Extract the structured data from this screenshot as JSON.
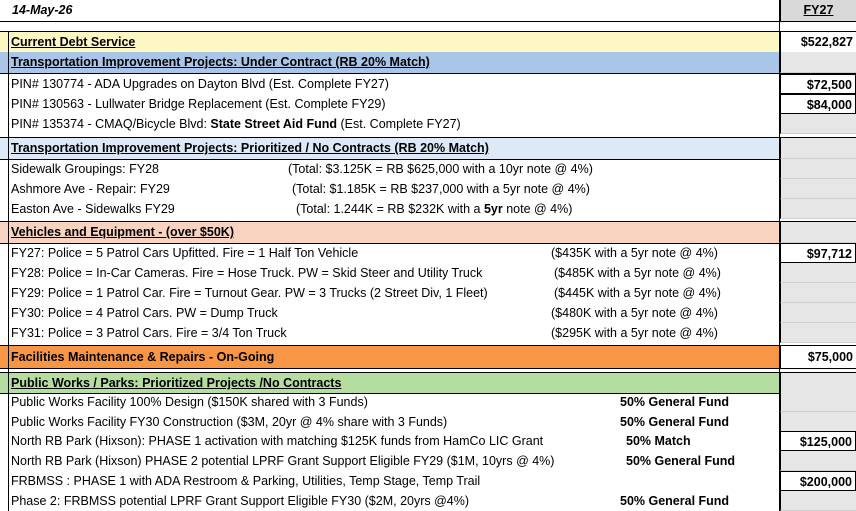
{
  "date": "14-May-26",
  "fy_header": "FY27",
  "current_debt": {
    "label": "Current Debt Service",
    "amount": "$522,827"
  },
  "transport_contract": {
    "header": "Transportation Improvement Projects: Under Contract (RB 20% Match)",
    "rows": [
      {
        "text": "PIN# 130774 - ADA Upgrades on Dayton Blvd (Est. Complete FY27)",
        "amount": "$72,500"
      },
      {
        "text": "PIN# 130563 - Lullwater Bridge Replacement (Est. Complete FY29)",
        "amount": "$84,000"
      },
      {
        "pre": "PIN# 135374 - CMAQ/Bicycle Blvd: ",
        "bold": "State Street Aid Fund",
        "post": " (Est. Complete FY27)"
      }
    ]
  },
  "transport_prior": {
    "header": "Transportation Improvement Projects:  Prioritized / No Contracts  (RB 20% Match)",
    "rows": [
      {
        "name": "Sidewalk Groupings:  FY28",
        "note": "(Total: $3.125K = RB $625,000 with a 10yr note @ 4%)"
      },
      {
        "name": "Ashmore Ave  - Repair:    FY29",
        "note": "(Total: $1.185K = RB $237,000 with a 5yr note @ 4%)"
      },
      {
        "name": "Easton Ave -  Sidewalks FY29",
        "note_pre": "(Total: 1.244K = RB $232K with a ",
        "note_bold": "5yr",
        "note_post": " note @ 4%)"
      }
    ]
  },
  "vehicles": {
    "header": "Vehicles and Equipment - (over $50K)",
    "rows": [
      {
        "text": "FY27: Police = 5 Patrol Cars Upfitted. Fire = 1 Half Ton Vehicle",
        "note": "($435K with a 5yr note @ 4%)",
        "amount": "$97,712"
      },
      {
        "text": "FY28: Police = In-Car Cameras. Fire = Hose Truck. PW = Skid Steer and Utility Truck",
        "note": "($485K with a 5yr note @ 4%)"
      },
      {
        "text": "FY29: Police = 1 Patrol Car. Fire = Turnout Gear. PW = 3 Trucks (2 Street Div, 1 Fleet)",
        "note": "($445K with a 5yr note @ 4%)"
      },
      {
        "text": "FY30: Police = 4 Patrol Cars. PW = Dump Truck",
        "note": "($480K with a 5yr note @ 4%)"
      },
      {
        "text": "FY31: Police = 3 Patrol Cars. Fire = 3/4 Ton Truck",
        "note": "($295K with a 5yr note @ 4%)"
      }
    ]
  },
  "facilities": {
    "label": "Facilities Maintenance & Repairs - On-Going",
    "amount": "$75,000"
  },
  "public_works": {
    "header": "Public Works / Parks: Prioritized Projects /No Contracts",
    "rows": [
      {
        "text": "Public Works Facility 100% Design ($150K shared with 3 Funds)",
        "fund": "50% General Fund"
      },
      {
        "text": "Public Works Facility FY30 Construction ($3M, 20yr @ 4% share with 3 Funds)",
        "fund": "50% General Fund"
      },
      {
        "text": "North RB Park (Hixson): PHASE 1 activation with matching $125K funds from HamCo LIC Grant",
        "fund": "50% Match",
        "amount": "$125,000"
      },
      {
        "text": "North RB Park (Hixson) PHASE 2 potential LPRF Grant Support Eligible FY29 ($1M, 10yrs @ 4%)",
        "fund": "50% General Fund"
      },
      {
        "text": "FRBMSS : PHASE 1 with ADA Restroom & Parking, Utilities, Temp Stage, Temp Trail",
        "amount": "$200,000"
      },
      {
        "text": "Phase 2: FRBMSS potential LPRF Grant Support Eligible FY30 ($2M, 20yrs @4%)",
        "fund": "50% General Fund"
      }
    ]
  },
  "colors": {
    "debt_bg": "#fdf7c3",
    "transport_contract_bg": "#a9c6e8",
    "transport_prior_bg": "#dde9f7",
    "vehicles_bg": "#f8d3c0",
    "facilities_bg": "#f79645",
    "public_works_bg": "#b6dda0"
  }
}
